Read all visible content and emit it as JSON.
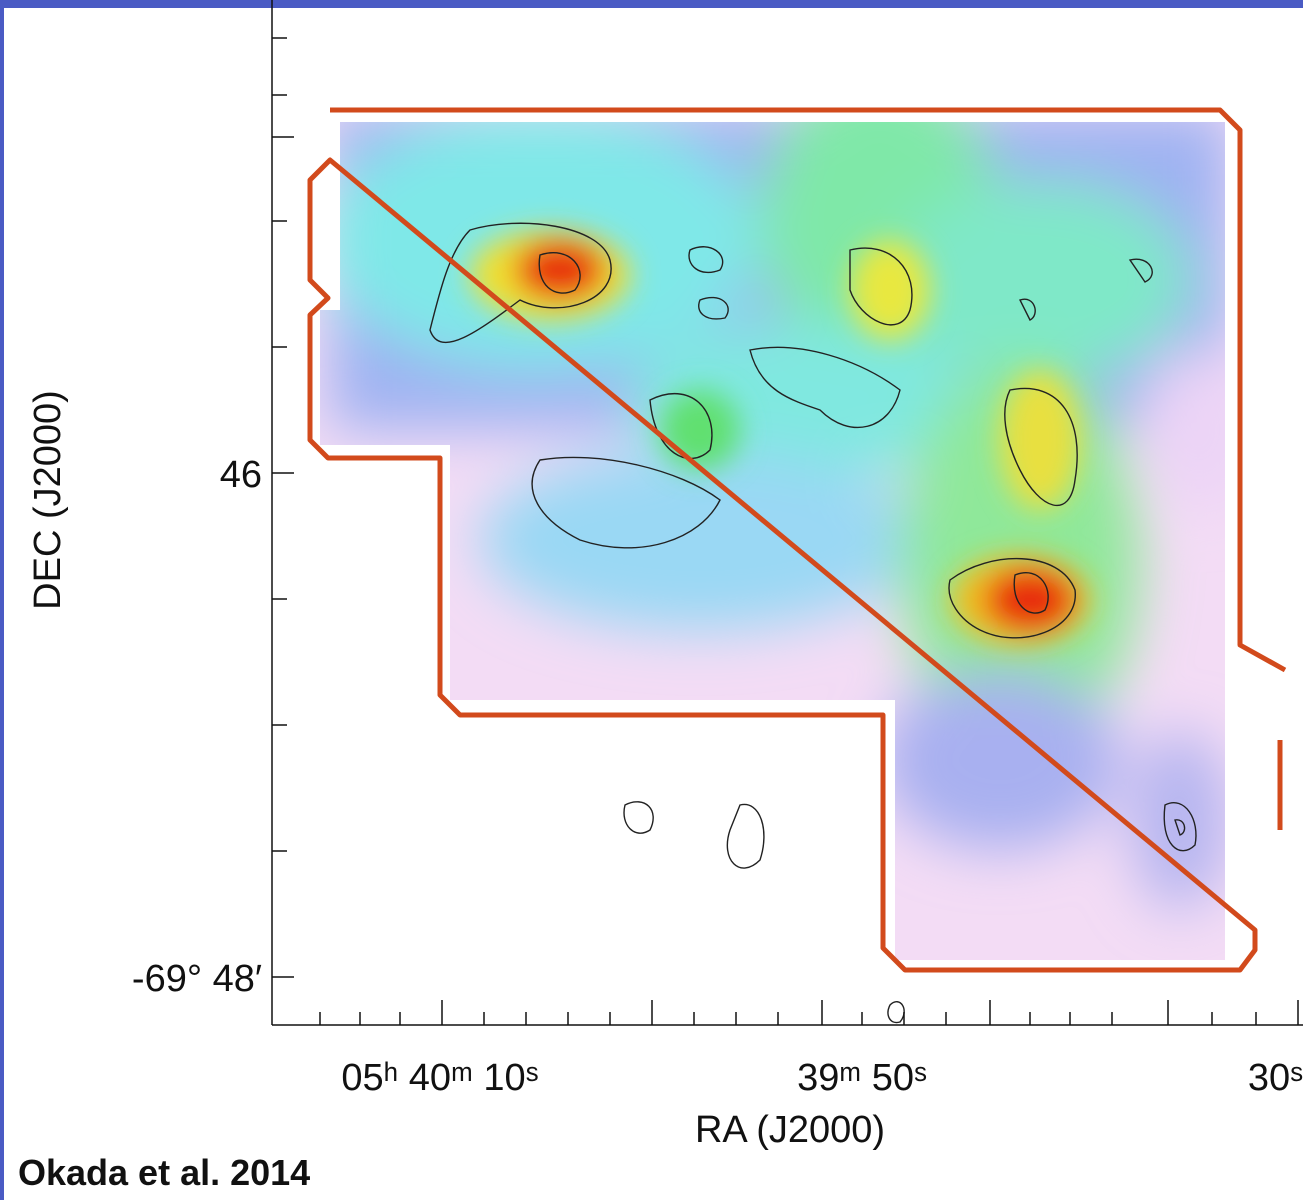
{
  "figure": {
    "y_axis_title": "DEC (J2000)",
    "x_axis_title": "RA (J2000)",
    "y_tick_labels": [
      "46",
      "-69° 48′"
    ],
    "x_tick_labels": [
      "05ʰ 40ᵐ 10ˢ",
      "39ᵐ 50ˢ",
      "30ˢ"
    ],
    "citation": "Okada et al. 2014"
  }
}
